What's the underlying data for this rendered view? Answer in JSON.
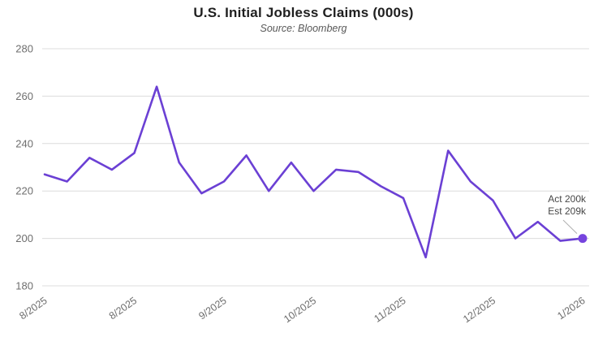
{
  "chart_data": {
    "type": "line",
    "title": "U.S. Initial Jobless Claims (000s)",
    "subtitle": "Source: Bloomberg",
    "series": [
      {
        "name": "Initial Jobless Claims (000s)",
        "values": [
          227,
          224,
          234,
          229,
          236,
          264,
          232,
          219,
          224,
          235,
          220,
          232,
          220,
          229,
          228,
          222,
          217,
          192,
          237,
          224,
          216,
          200,
          207,
          199,
          200
        ]
      }
    ],
    "x_tick_labels": [
      "8/2025",
      "8/2025",
      "9/2025",
      "10/2025",
      "11/2025",
      "12/2025",
      "1/2026"
    ],
    "x_tick_indices": [
      0,
      4,
      8,
      12,
      16,
      20,
      24
    ],
    "y_ticks": [
      180,
      200,
      220,
      240,
      260,
      280
    ],
    "ylim": [
      180,
      280
    ],
    "grid": "horizontal-only",
    "legend_position": "none",
    "annotation": {
      "line1": "Act 200k",
      "line2": "Est 209k"
    },
    "last_point_value": 200,
    "colors": {
      "line": "#6B40D4",
      "end_dot": "#7644DE",
      "gridline": "#dcdcdc",
      "tick_text": "#6e6e6e",
      "title_text": "#1f1f1f",
      "subtitle_text": "#595959",
      "annotation_text": "#474747",
      "leader_line": "#b0b0b0",
      "background": "#ffffff"
    }
  }
}
